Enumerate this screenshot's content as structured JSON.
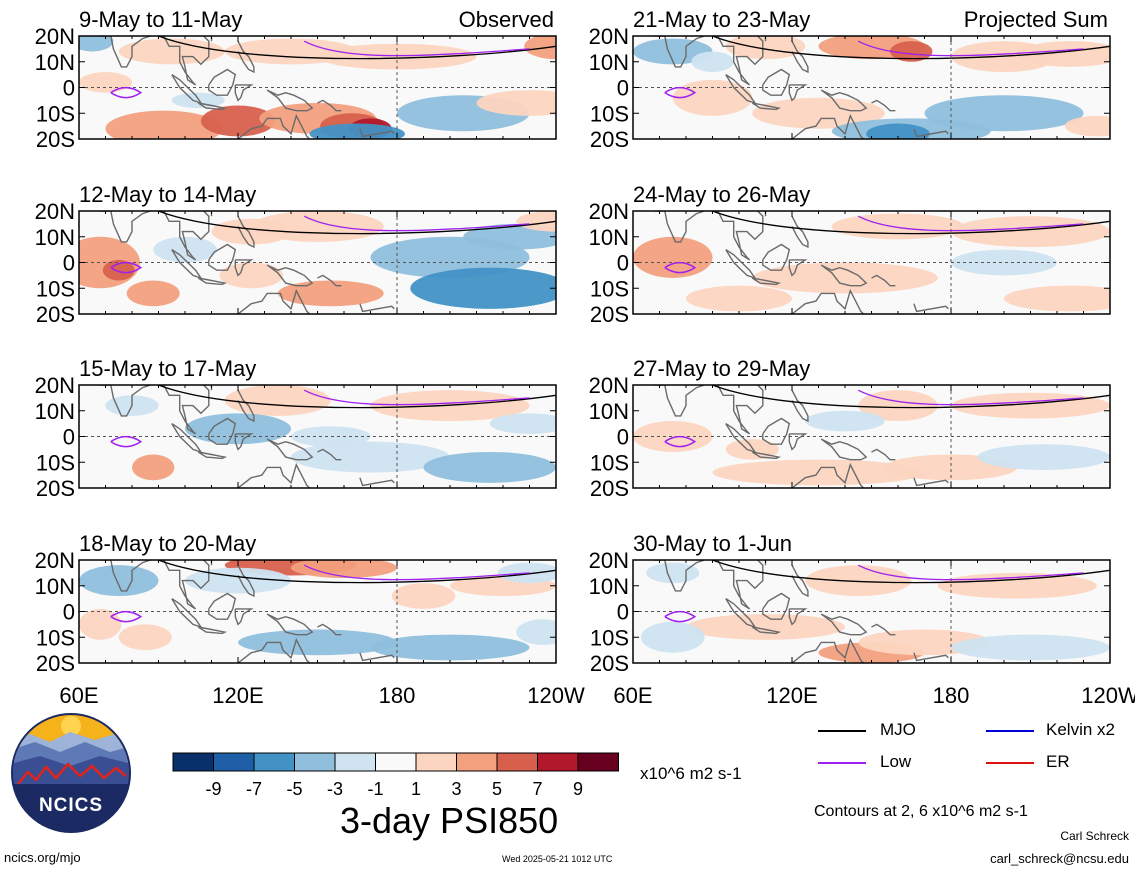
{
  "panels": [
    {
      "title": "9-May to 11-May",
      "tag": "Observed",
      "col": 0,
      "row": 0,
      "blobs": [
        {
          "x": 92,
          "y": -16,
          "rx": 22,
          "ry": 7,
          "v": 5
        },
        {
          "x": 120,
          "y": -13,
          "rx": 14,
          "ry": 6,
          "v": 7
        },
        {
          "x": 150,
          "y": -12,
          "rx": 22,
          "ry": 6,
          "v": 5
        },
        {
          "x": 163,
          "y": -15,
          "rx": 12,
          "ry": 5,
          "v": 7
        },
        {
          "x": 170,
          "y": -16,
          "rx": 8,
          "ry": 4,
          "v": 9
        },
        {
          "x": 165,
          "y": -18,
          "rx": 18,
          "ry": 4,
          "v": -5
        },
        {
          "x": 95,
          "y": 14,
          "rx": 20,
          "ry": 5,
          "v": 3
        },
        {
          "x": 140,
          "y": 14,
          "rx": 25,
          "ry": 5,
          "v": 3
        },
        {
          "x": 180,
          "y": 12,
          "rx": 30,
          "ry": 5,
          "v": 3
        },
        {
          "x": 240,
          "y": 16,
          "rx": 12,
          "ry": 5,
          "v": 5
        },
        {
          "x": 205,
          "y": -10,
          "rx": 25,
          "ry": 7,
          "v": -3
        },
        {
          "x": 105,
          "y": -5,
          "rx": 10,
          "ry": 3,
          "v": -1
        },
        {
          "x": 70,
          "y": 2,
          "rx": 10,
          "ry": 4,
          "v": 3
        },
        {
          "x": 65,
          "y": 18,
          "rx": 8,
          "ry": 4,
          "v": -3
        },
        {
          "x": 230,
          "y": -6,
          "rx": 20,
          "ry": 5,
          "v": 3
        }
      ]
    },
    {
      "title": "12-May to 14-May",
      "tag": "",
      "col": 0,
      "row": 1,
      "blobs": [
        {
          "x": 68,
          "y": 0,
          "rx": 15,
          "ry": 10,
          "v": 5
        },
        {
          "x": 88,
          "y": -12,
          "rx": 10,
          "ry": 5,
          "v": 5
        },
        {
          "x": 75,
          "y": -3,
          "rx": 6,
          "ry": 4,
          "v": 7
        },
        {
          "x": 155,
          "y": -12,
          "rx": 20,
          "ry": 5,
          "v": 5
        },
        {
          "x": 150,
          "y": 14,
          "rx": 25,
          "ry": 6,
          "v": 3
        },
        {
          "x": 125,
          "y": 12,
          "rx": 15,
          "ry": 5,
          "v": 3
        },
        {
          "x": 200,
          "y": 2,
          "rx": 30,
          "ry": 8,
          "v": -3
        },
        {
          "x": 215,
          "y": -10,
          "rx": 30,
          "ry": 8,
          "v": -5
        },
        {
          "x": 225,
          "y": 10,
          "rx": 20,
          "ry": 5,
          "v": -3
        },
        {
          "x": 100,
          "y": 5,
          "rx": 12,
          "ry": 5,
          "v": -1
        },
        {
          "x": 240,
          "y": 16,
          "rx": 15,
          "ry": 4,
          "v": 3
        },
        {
          "x": 125,
          "y": -5,
          "rx": 12,
          "ry": 5,
          "v": 3
        }
      ]
    },
    {
      "title": "15-May to 17-May",
      "tag": "",
      "col": 0,
      "row": 2,
      "blobs": [
        {
          "x": 88,
          "y": -12,
          "rx": 8,
          "ry": 5,
          "v": 5
        },
        {
          "x": 135,
          "y": 14,
          "rx": 20,
          "ry": 6,
          "v": 3
        },
        {
          "x": 200,
          "y": 12,
          "rx": 30,
          "ry": 6,
          "v": 3
        },
        {
          "x": 120,
          "y": 3,
          "rx": 20,
          "ry": 6,
          "v": -3
        },
        {
          "x": 170,
          "y": -8,
          "rx": 30,
          "ry": 6,
          "v": -1
        },
        {
          "x": 215,
          "y": -12,
          "rx": 25,
          "ry": 6,
          "v": -3
        },
        {
          "x": 230,
          "y": 5,
          "rx": 15,
          "ry": 4,
          "v": -1
        },
        {
          "x": 80,
          "y": 12,
          "rx": 10,
          "ry": 4,
          "v": -1
        },
        {
          "x": 155,
          "y": 0,
          "rx": 15,
          "ry": 4,
          "v": -1
        }
      ]
    },
    {
      "title": "18-May to 20-May",
      "tag": "",
      "col": 0,
      "row": 3,
      "blobs": [
        {
          "x": 140,
          "y": 18,
          "rx": 25,
          "ry": 4,
          "v": 7
        },
        {
          "x": 160,
          "y": 17,
          "rx": 20,
          "ry": 4,
          "v": 5
        },
        {
          "x": 190,
          "y": 6,
          "rx": 12,
          "ry": 5,
          "v": 3
        },
        {
          "x": 220,
          "y": 10,
          "rx": 20,
          "ry": 4,
          "v": 3
        },
        {
          "x": 68,
          "y": -5,
          "rx": 8,
          "ry": 6,
          "v": 3
        },
        {
          "x": 85,
          "y": -10,
          "rx": 10,
          "ry": 5,
          "v": 3
        },
        {
          "x": 75,
          "y": 12,
          "rx": 15,
          "ry": 6,
          "v": -3
        },
        {
          "x": 120,
          "y": 12,
          "rx": 20,
          "ry": 5,
          "v": -1
        },
        {
          "x": 150,
          "y": -12,
          "rx": 30,
          "ry": 5,
          "v": -3
        },
        {
          "x": 200,
          "y": -14,
          "rx": 30,
          "ry": 5,
          "v": -3
        },
        {
          "x": 235,
          "y": -8,
          "rx": 10,
          "ry": 5,
          "v": -1
        },
        {
          "x": 230,
          "y": 15,
          "rx": 12,
          "ry": 4,
          "v": -1
        }
      ]
    },
    {
      "title": "21-May to 23-May",
      "tag": "Projected Sum",
      "col": 1,
      "row": 0,
      "blobs": [
        {
          "x": 150,
          "y": 16,
          "rx": 20,
          "ry": 5,
          "v": 5
        },
        {
          "x": 165,
          "y": 14,
          "rx": 8,
          "ry": 4,
          "v": 7
        },
        {
          "x": 200,
          "y": 12,
          "rx": 20,
          "ry": 6,
          "v": 3
        },
        {
          "x": 225,
          "y": 13,
          "rx": 20,
          "ry": 5,
          "v": 3
        },
        {
          "x": 110,
          "y": 16,
          "rx": 15,
          "ry": 5,
          "v": 3
        },
        {
          "x": 90,
          "y": -4,
          "rx": 15,
          "ry": 7,
          "v": 3
        },
        {
          "x": 130,
          "y": -10,
          "rx": 25,
          "ry": 6,
          "v": 3
        },
        {
          "x": 165,
          "y": -17,
          "rx": 30,
          "ry": 5,
          "v": -3
        },
        {
          "x": 160,
          "y": -18,
          "rx": 12,
          "ry": 4,
          "v": -5
        },
        {
          "x": 200,
          "y": -10,
          "rx": 30,
          "ry": 7,
          "v": -3
        },
        {
          "x": 75,
          "y": 14,
          "rx": 15,
          "ry": 5,
          "v": -3
        },
        {
          "x": 90,
          "y": 10,
          "rx": 8,
          "ry": 4,
          "v": -1
        },
        {
          "x": 235,
          "y": -15,
          "rx": 12,
          "ry": 4,
          "v": 3
        }
      ]
    },
    {
      "title": "24-May to 26-May",
      "tag": "",
      "col": 1,
      "row": 1,
      "blobs": [
        {
          "x": 75,
          "y": 2,
          "rx": 15,
          "ry": 8,
          "v": 5
        },
        {
          "x": 140,
          "y": -6,
          "rx": 35,
          "ry": 6,
          "v": 3
        },
        {
          "x": 100,
          "y": -14,
          "rx": 20,
          "ry": 5,
          "v": 3
        },
        {
          "x": 160,
          "y": 14,
          "rx": 25,
          "ry": 5,
          "v": 3
        },
        {
          "x": 210,
          "y": 12,
          "rx": 30,
          "ry": 6,
          "v": 3
        },
        {
          "x": 225,
          "y": -14,
          "rx": 25,
          "ry": 5,
          "v": 3
        },
        {
          "x": 200,
          "y": 0,
          "rx": 20,
          "ry": 5,
          "v": -1
        }
      ]
    },
    {
      "title": "27-May to 29-May",
      "tag": "",
      "col": 1,
      "row": 2,
      "blobs": [
        {
          "x": 130,
          "y": -14,
          "rx": 40,
          "ry": 5,
          "v": 3
        },
        {
          "x": 180,
          "y": -12,
          "rx": 25,
          "ry": 5,
          "v": 3
        },
        {
          "x": 160,
          "y": 12,
          "rx": 15,
          "ry": 6,
          "v": 3
        },
        {
          "x": 210,
          "y": 12,
          "rx": 30,
          "ry": 5,
          "v": 3
        },
        {
          "x": 75,
          "y": 0,
          "rx": 15,
          "ry": 6,
          "v": 3
        },
        {
          "x": 105,
          "y": -5,
          "rx": 10,
          "ry": 4,
          "v": 3
        },
        {
          "x": 140,
          "y": 6,
          "rx": 15,
          "ry": 4,
          "v": -1
        },
        {
          "x": 215,
          "y": -8,
          "rx": 25,
          "ry": 5,
          "v": -1
        }
      ]
    },
    {
      "title": "30-May to 1-Jun",
      "tag": "",
      "col": 1,
      "row": 3,
      "blobs": [
        {
          "x": 150,
          "y": -16,
          "rx": 20,
          "ry": 4,
          "v": 5
        },
        {
          "x": 145,
          "y": 12,
          "rx": 20,
          "ry": 6,
          "v": 3
        },
        {
          "x": 205,
          "y": 10,
          "rx": 30,
          "ry": 5,
          "v": 3
        },
        {
          "x": 110,
          "y": -6,
          "rx": 30,
          "ry": 5,
          "v": 3
        },
        {
          "x": 170,
          "y": -12,
          "rx": 25,
          "ry": 5,
          "v": 3
        },
        {
          "x": 75,
          "y": -10,
          "rx": 12,
          "ry": 6,
          "v": -1
        },
        {
          "x": 210,
          "y": -14,
          "rx": 30,
          "ry": 5,
          "v": -1
        },
        {
          "x": 75,
          "y": 15,
          "rx": 10,
          "ry": 4,
          "v": -1
        }
      ]
    }
  ],
  "axes": {
    "y_ticks": [
      "20N",
      "10N",
      "0",
      "10S",
      "20S"
    ],
    "x_ticks": [
      "60E",
      "120E",
      "180",
      "120W"
    ]
  },
  "colorbar": {
    "labels": [
      "-9",
      "-7",
      "-5",
      "-3",
      "-1",
      "1",
      "3",
      "5",
      "7",
      "9"
    ],
    "colors": [
      "#08306b",
      "#1f5fa8",
      "#4292c6",
      "#8fbfdd",
      "#cfe3f1",
      "#f9f9f9",
      "#fcd5c0",
      "#f2a07e",
      "#d7604d",
      "#b2182b",
      "#67001f"
    ],
    "unit": "x10^6 m2 s-1"
  },
  "title": "3-day PSI850",
  "legend": [
    {
      "label": "MJO",
      "color": "#000000"
    },
    {
      "label": "Kelvin x2",
      "color": "#0000dd"
    },
    {
      "label": "Low",
      "color": "#a020f0"
    },
    {
      "label": "ER",
      "color": "#e01010"
    }
  ],
  "contour_note": "Contours at 2, 6 x10^6 m2 s-1",
  "logo_text": "NCICS",
  "author": "Carl Schreck",
  "email": "carl_schreck@ncsu.edu",
  "url": "ncics.org/mjo",
  "timestamp": "Wed 2025-05-21 1012 UTC"
}
